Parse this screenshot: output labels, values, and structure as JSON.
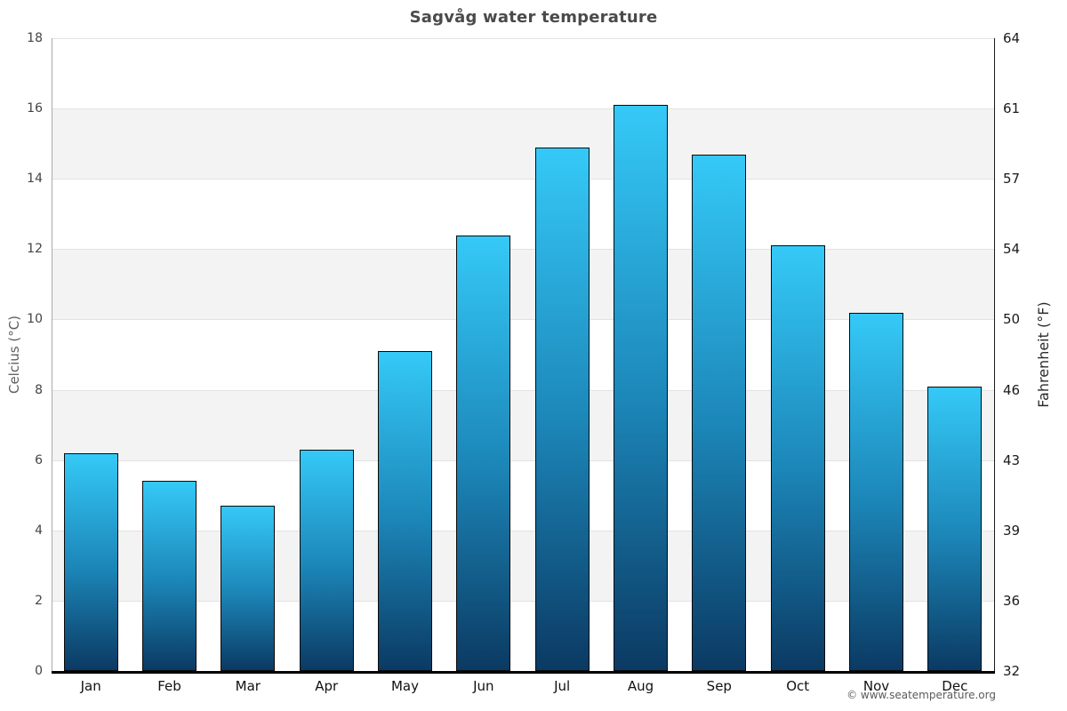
{
  "chart": {
    "title": "Sagvåg water temperature",
    "ylabel_left": "Celcius (°C)",
    "ylabel_right": "Fahrenheit (°F)"
  },
  "chart_data": {
    "type": "bar",
    "title": "Sagvåg water temperature",
    "categories": [
      "Jan",
      "Feb",
      "Mar",
      "Apr",
      "May",
      "Jun",
      "Jul",
      "Aug",
      "Sep",
      "Oct",
      "Nov",
      "Dec"
    ],
    "values": [
      6.2,
      5.4,
      4.7,
      6.3,
      9.1,
      12.4,
      14.9,
      16.1,
      14.7,
      12.1,
      10.2,
      8.1
    ],
    "xlabel": "",
    "ylabel_left": "Celcius (°C)",
    "ylabel_right": "Fahrenheit (°F)",
    "ylim": [
      0,
      18
    ],
    "yticks_left": [
      0,
      2,
      4,
      6,
      8,
      10,
      12,
      14,
      16,
      18
    ],
    "yticks_right": [
      32,
      36,
      39,
      43,
      46,
      50,
      54,
      57,
      61,
      64
    ],
    "grid": "horizontal-bands-alternating",
    "legend": "none",
    "colors": {
      "bar_top": "#35c9f7",
      "bar_mid": "#1c87b9",
      "bar_bottom": "#0b3a63",
      "bar_border": "#0a0a0a",
      "band_gray": "#f3f3f3",
      "band_white": "#ffffff",
      "gridline": "#e2e2e2",
      "axis_bottom": "#000000",
      "axis_left": "#aaaaaa",
      "axis_right": "#1a1a1a",
      "title_color": "#4a4a4a"
    }
  },
  "footer": {
    "copyright": "© www.seatemperature.org"
  }
}
